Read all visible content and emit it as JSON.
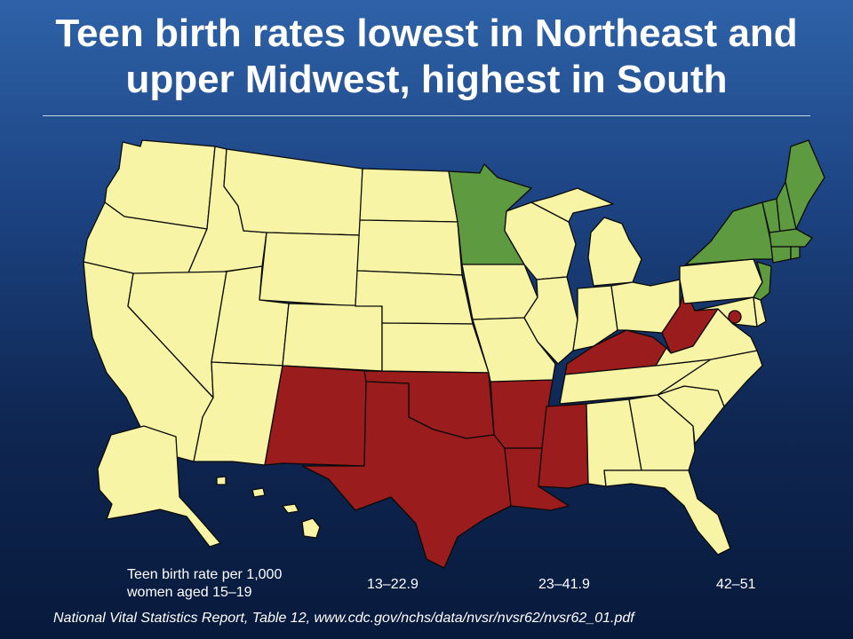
{
  "title": {
    "line1": "Teen birth rates lowest in Northeast and",
    "line2": "upper Midwest, highest in South"
  },
  "legend": {
    "caption_line1": "Teen birth rate per 1,000",
    "caption_line2": "women aged 15–19",
    "items": [
      {
        "label": "13–22.9",
        "color": "#5e9a3f"
      },
      {
        "label": "23–41.9",
        "color": "#f8f4a6"
      },
      {
        "label": "42–51",
        "color": "#9b1c1c"
      }
    ]
  },
  "source": "National Vital Statistics Report, Table 12, www.cdc.gov/nchs/data/nvsr/nvsr62/nvsr62_01.pdf",
  "colors": {
    "low": "#5e9a3f",
    "mid": "#f8f4a6",
    "high": "#9b1c1c",
    "background_top": "#2e62a8",
    "background_bottom": "#081a3c"
  },
  "map_data": {
    "categories": [
      "13–22.9",
      "23–41.9",
      "42–51"
    ],
    "states_by_category": {
      "13–22.9": [
        "Minnesota",
        "New York",
        "New Jersey",
        "Vermont",
        "New Hampshire",
        "Maine",
        "Massachusetts",
        "Connecticut",
        "Rhode Island"
      ],
      "42–51": [
        "New Mexico",
        "Texas",
        "Oklahoma",
        "Arkansas",
        "Louisiana",
        "Mississippi",
        "Kentucky",
        "West Virginia",
        "District of Columbia"
      ]
    }
  }
}
